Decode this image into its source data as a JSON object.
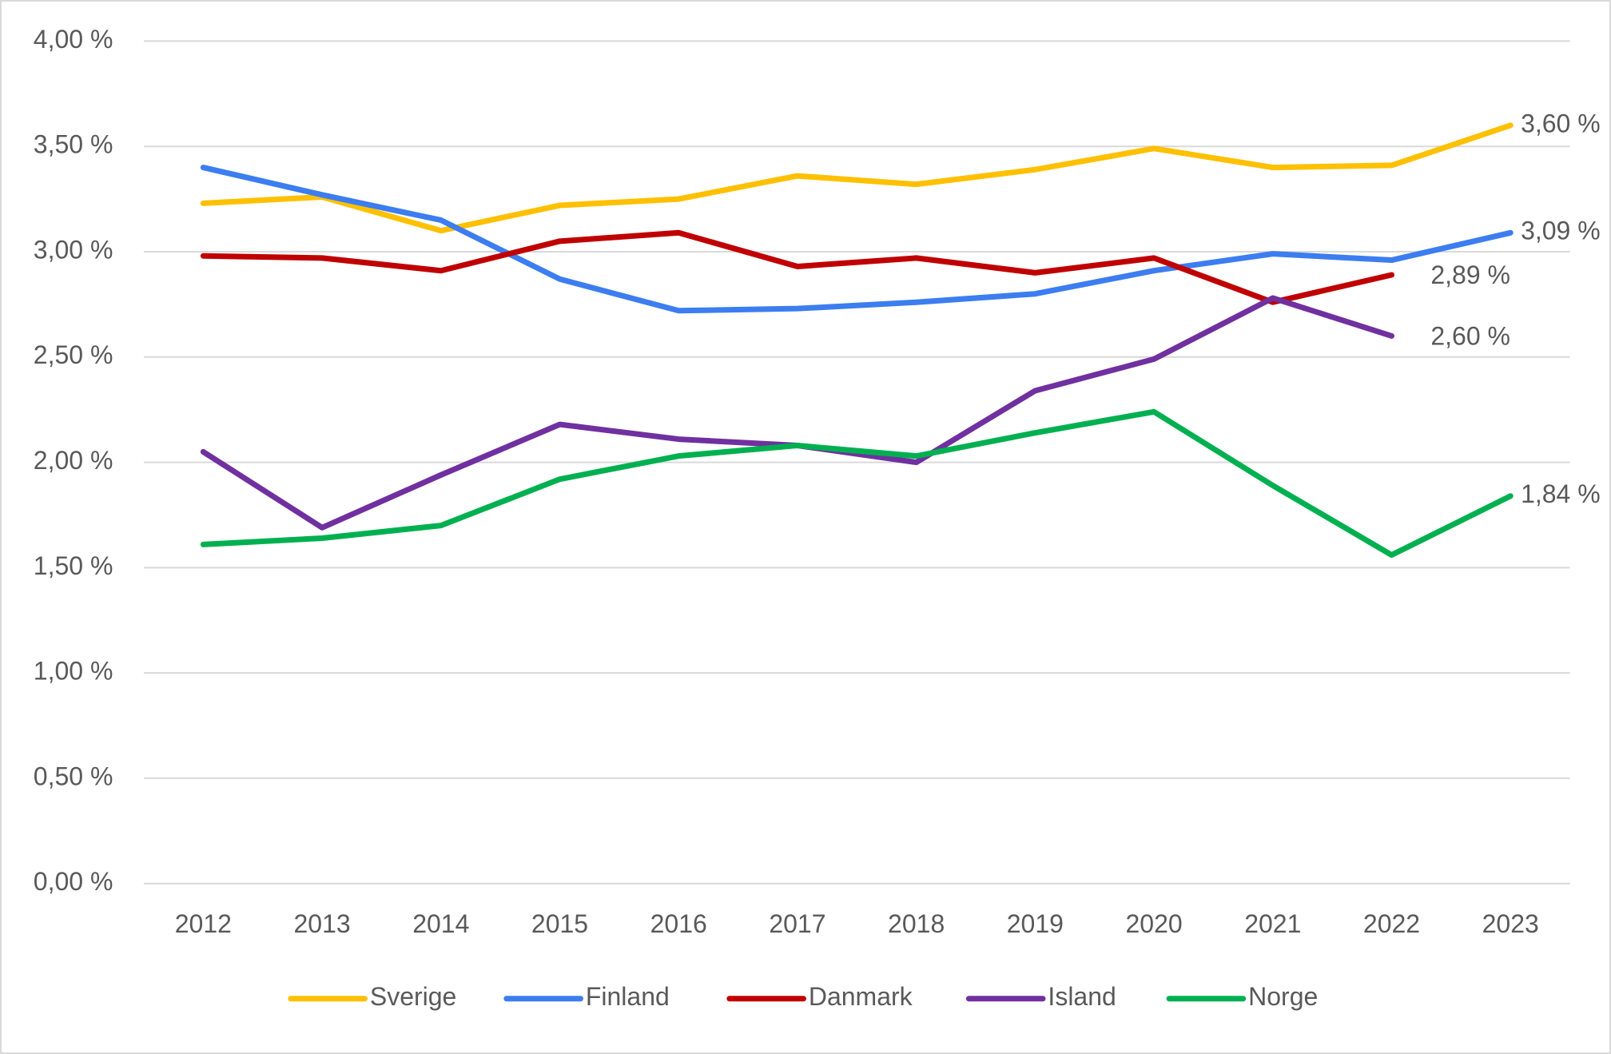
{
  "chart_data": {
    "type": "line",
    "categories": [
      "2012",
      "2013",
      "2014",
      "2015",
      "2016",
      "2017",
      "2018",
      "2019",
      "2020",
      "2021",
      "2022",
      "2023"
    ],
    "series": [
      {
        "name": "Sverige",
        "color": "#ffc000",
        "values": [
          3.23,
          3.26,
          3.1,
          3.22,
          3.25,
          3.36,
          3.32,
          3.39,
          3.49,
          3.4,
          3.41,
          3.6
        ],
        "value_labels": [
          null,
          null,
          null,
          null,
          null,
          null,
          null,
          null,
          null,
          null,
          null,
          "3,60 %"
        ]
      },
      {
        "name": "Finland",
        "color": "#3c7df0",
        "values": [
          3.4,
          3.27,
          3.15,
          2.87,
          2.72,
          2.73,
          2.76,
          2.8,
          2.91,
          2.99,
          2.96,
          3.09
        ],
        "value_labels": [
          null,
          null,
          null,
          null,
          null,
          null,
          null,
          null,
          null,
          null,
          null,
          "3,09 %"
        ]
      },
      {
        "name": "Danmark",
        "color": "#c00000",
        "values": [
          2.98,
          2.97,
          2.91,
          3.05,
          3.09,
          2.93,
          2.97,
          2.9,
          2.97,
          2.76,
          2.89,
          null
        ],
        "value_labels": [
          null,
          null,
          null,
          null,
          null,
          null,
          null,
          null,
          null,
          null,
          "2,89 %",
          null
        ]
      },
      {
        "name": "Island",
        "color": "#7030a0",
        "values": [
          2.05,
          1.69,
          1.94,
          2.18,
          2.11,
          2.08,
          2.0,
          2.34,
          2.49,
          2.78,
          2.6,
          null
        ],
        "value_labels": [
          null,
          null,
          null,
          null,
          null,
          null,
          null,
          null,
          null,
          null,
          "2,60 %",
          null
        ]
      },
      {
        "name": "Norge",
        "color": "#00b050",
        "values": [
          1.61,
          1.64,
          1.7,
          1.92,
          2.03,
          2.08,
          2.03,
          2.14,
          2.24,
          1.89,
          1.56,
          1.84
        ],
        "value_labels": [
          null,
          null,
          null,
          null,
          null,
          null,
          null,
          null,
          null,
          null,
          null,
          "1,84 %"
        ]
      }
    ],
    "ylim": [
      0,
      4
    ],
    "yticks": [
      {
        "value": 0,
        "label": "0,00 %"
      },
      {
        "value": 0.5,
        "label": "0,50 %"
      },
      {
        "value": 1,
        "label": "1,00 %"
      },
      {
        "value": 1.5,
        "label": "1,50 %"
      },
      {
        "value": 2,
        "label": "2,00 %"
      },
      {
        "value": 2.5,
        "label": "2,50 %"
      },
      {
        "value": 3,
        "label": "3,00 %"
      },
      {
        "value": 3.5,
        "label": "3,50 %"
      },
      {
        "value": 4,
        "label": "4,00 %"
      }
    ],
    "grid": true,
    "legend": "bottom"
  }
}
